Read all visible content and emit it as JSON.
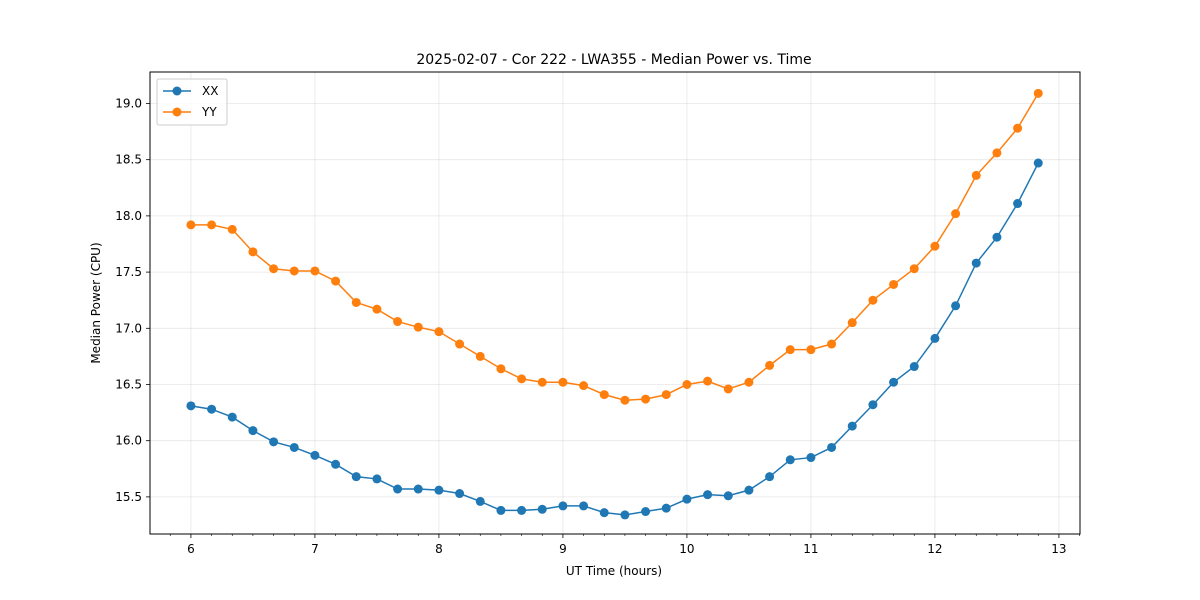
{
  "chart_data": {
    "type": "line",
    "title": "2025-02-07 - Cor 222 - LWA355 - Median Power vs. Time",
    "xlabel": "UT Time (hours)",
    "ylabel": "Median Power (CPU)",
    "xlim": [
      5.67,
      13.17
    ],
    "ylim": [
      15.17,
      19.28
    ],
    "xticks": [
      6,
      7,
      8,
      9,
      10,
      11,
      12,
      13
    ],
    "yticks": [
      15.5,
      16.0,
      16.5,
      17.0,
      17.5,
      18.0,
      18.5,
      19.0
    ],
    "xtick_labels": [
      "6",
      "7",
      "8",
      "9",
      "10",
      "11",
      "12",
      "13"
    ],
    "ytick_labels": [
      "15.5",
      "16.0",
      "16.5",
      "17.0",
      "17.5",
      "18.0",
      "18.5",
      "19.0"
    ],
    "grid": true,
    "legend_position": "top-left",
    "x": [
      6.0,
      6.1667,
      6.3333,
      6.5,
      6.6667,
      6.8333,
      7.0,
      7.1667,
      7.3333,
      7.5,
      7.6667,
      7.8333,
      8.0,
      8.1667,
      8.3333,
      8.5,
      8.6667,
      8.8333,
      9.0,
      9.1667,
      9.3333,
      9.5,
      9.6667,
      9.8333,
      10.0,
      10.1667,
      10.3333,
      10.5,
      10.6667,
      10.8333,
      11.0,
      11.1667,
      11.3333,
      11.5,
      11.6667,
      11.8333,
      12.0,
      12.1667,
      12.3333,
      12.5,
      12.6667,
      12.8333
    ],
    "series": [
      {
        "name": "XX",
        "color": "#1f77b4",
        "values": [
          16.31,
          16.28,
          16.21,
          16.09,
          15.99,
          15.94,
          15.87,
          15.79,
          15.68,
          15.66,
          15.57,
          15.57,
          15.56,
          15.53,
          15.46,
          15.38,
          15.38,
          15.39,
          15.42,
          15.42,
          15.36,
          15.34,
          15.37,
          15.4,
          15.48,
          15.52,
          15.51,
          15.56,
          15.68,
          15.83,
          15.85,
          15.94,
          16.13,
          16.32,
          16.52,
          16.66,
          16.91,
          17.2,
          17.58,
          17.81,
          18.11,
          18.47
        ]
      },
      {
        "name": "YY",
        "color": "#ff7f0e",
        "values": [
          17.92,
          17.92,
          17.88,
          17.68,
          17.53,
          17.51,
          17.51,
          17.42,
          17.23,
          17.17,
          17.06,
          17.01,
          16.97,
          16.86,
          16.75,
          16.64,
          16.55,
          16.52,
          16.52,
          16.49,
          16.41,
          16.36,
          16.37,
          16.41,
          16.5,
          16.53,
          16.46,
          16.52,
          16.67,
          16.81,
          16.81,
          16.86,
          17.05,
          17.25,
          17.39,
          17.53,
          17.73,
          18.02,
          18.36,
          18.56,
          18.78,
          19.09
        ]
      }
    ]
  }
}
